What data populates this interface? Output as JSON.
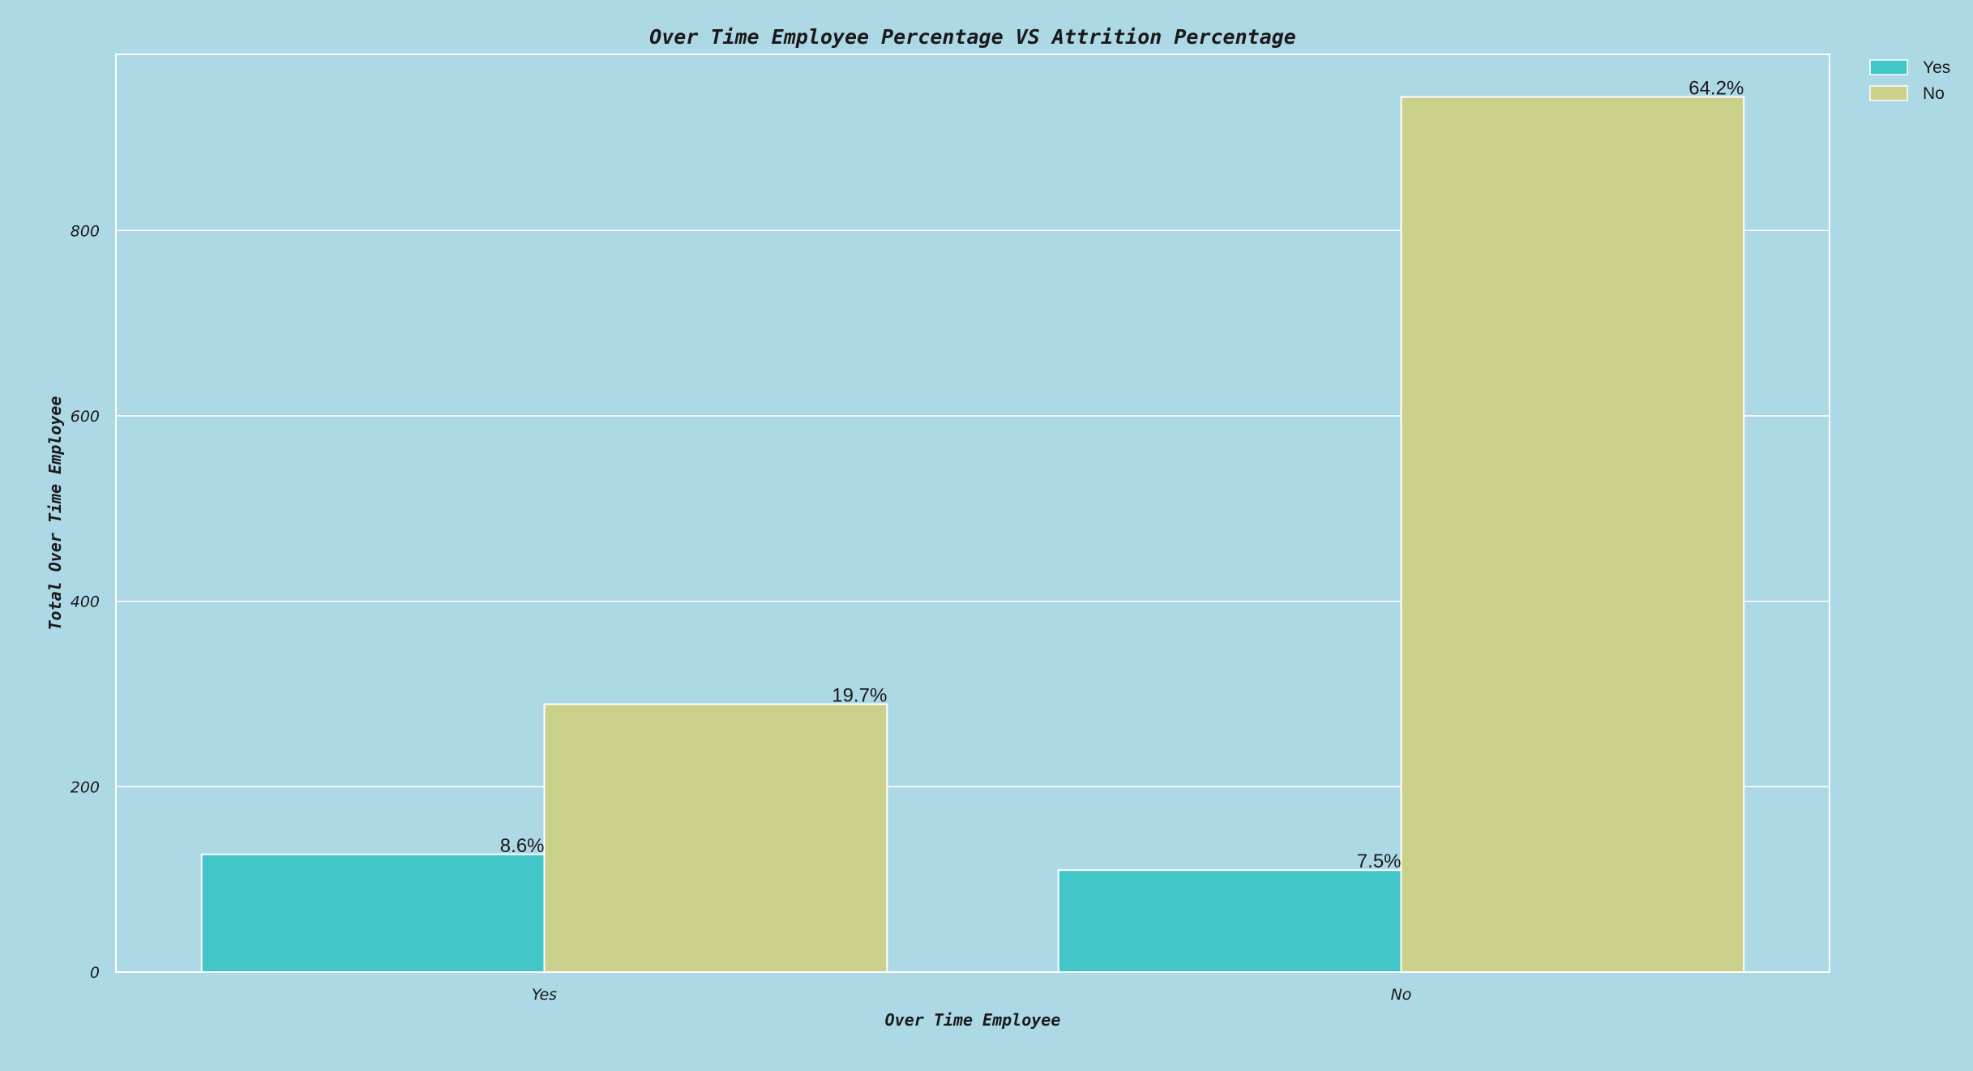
{
  "colors": {
    "background": "#add8e6",
    "grid": "#ffffff",
    "text": "#1a1a1a"
  },
  "chart_data": {
    "type": "bar",
    "title": "Over Time Employee Percentage VS Attrition Percentage",
    "xlabel": "Over Time Employee",
    "ylabel": "Total Over Time Employee",
    "categories": [
      "Yes",
      "No"
    ],
    "ylim": [
      0,
      990
    ],
    "yticks": [
      0,
      200,
      400,
      600,
      800
    ],
    "grid": true,
    "legend_position": "outside-top-right",
    "series": [
      {
        "name": "Yes",
        "color": "#43c6c8",
        "values": [
          127,
          110
        ],
        "labels": [
          "8.6%",
          "7.5%"
        ]
      },
      {
        "name": "No",
        "color": "#cbd08b",
        "values": [
          289,
          944
        ],
        "labels": [
          "19.7%",
          "64.2%"
        ]
      }
    ]
  }
}
